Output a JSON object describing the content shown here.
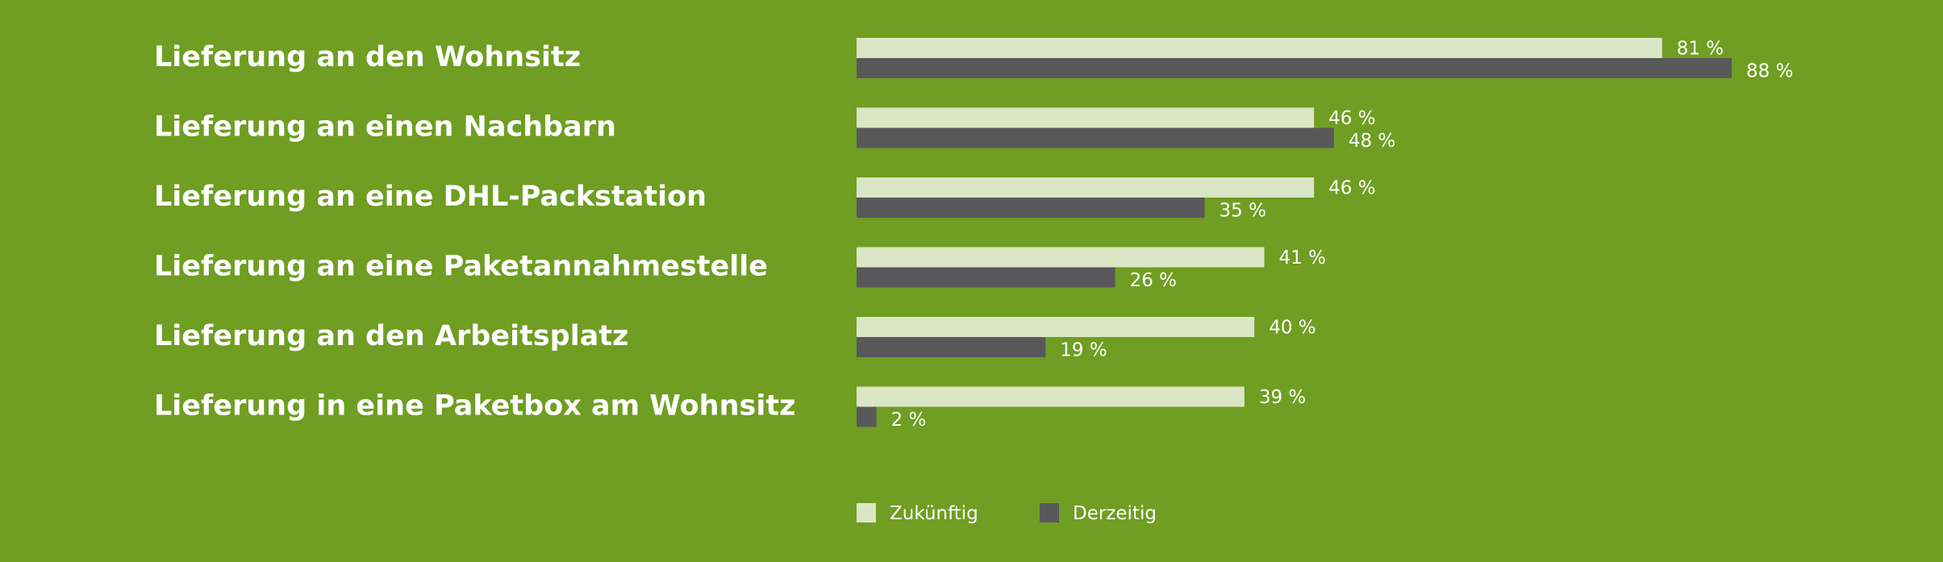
{
  "colors": {
    "background": "#6f9e22",
    "zukuenftig": "#dbe6c6",
    "derzeitig": "#58585a",
    "text": "#ffffff"
  },
  "chart_data": {
    "type": "bar",
    "orientation": "horizontal",
    "title": "",
    "xlabel": "",
    "ylabel": "",
    "categories": [
      "Lieferung an den Wohnsitz",
      "Lieferung an einen Nachbarn",
      "Lieferung an eine DHL-Packstation",
      "Lieferung an eine Paketannahmestelle",
      "Lieferung an den Arbeitsplatz",
      "Lieferung in eine Paketbox am Wohnsitz"
    ],
    "series": [
      {
        "name": "Zukünftig",
        "values": [
          81,
          46,
          46,
          41,
          40,
          39
        ],
        "labels": [
          "81 %",
          "46 %",
          "46 %",
          "41 %",
          "40 %",
          "39 %"
        ]
      },
      {
        "name": "Derzeitig",
        "values": [
          88,
          48,
          35,
          26,
          19,
          2
        ],
        "labels": [
          "88 %",
          "48 %",
          "35 %",
          "26 %",
          "19 %",
          "2 %"
        ]
      }
    ],
    "xlim": [
      0,
      100
    ],
    "grid": false,
    "legend_position": "bottom-left"
  }
}
